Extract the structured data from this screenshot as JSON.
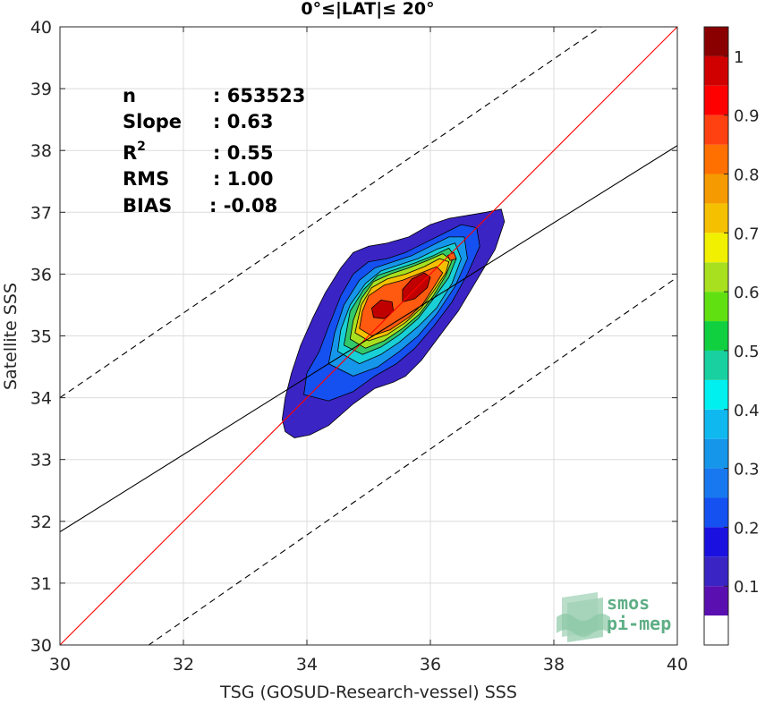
{
  "chart_data": {
    "type": "heatmap",
    "subtype": "density-contour-scatter",
    "title": "0°≤|LAT|≤ 20°",
    "xlabel": "TSG (GOSUD-Research-vessel) SSS",
    "ylabel": "Satellite SSS",
    "xlim": [
      30,
      40
    ],
    "ylim": [
      30,
      40
    ],
    "xticks": [
      30,
      32,
      34,
      36,
      38,
      40
    ],
    "yticks": [
      30,
      31,
      32,
      33,
      34,
      35,
      36,
      37,
      38,
      39,
      40
    ],
    "grid": true,
    "stats": [
      {
        "label": "n",
        "value": ": 653523"
      },
      {
        "label": "Slope",
        "value": ": 0.63"
      },
      {
        "label": "R",
        "sup": "2",
        "value": ": 0.55"
      },
      {
        "label": "RMS",
        "value": ": 1.00"
      },
      {
        "label": "BIAS",
        "value": ": -0.08"
      }
    ],
    "lines": [
      {
        "kind": "identity",
        "color": "#ff0000",
        "dash": "solid",
        "points": [
          [
            30,
            30
          ],
          [
            40,
            40
          ]
        ]
      },
      {
        "kind": "regression",
        "color": "#000000",
        "dash": "solid",
        "points": [
          [
            30,
            31.83
          ],
          [
            40,
            38.08
          ]
        ]
      },
      {
        "kind": "upper-bound",
        "color": "#000000",
        "dash": "dashed",
        "points": [
          [
            30,
            34.0
          ],
          [
            40,
            40.85
          ]
        ]
      },
      {
        "kind": "lower-bound",
        "color": "#000000",
        "dash": "dashed",
        "points": [
          [
            30,
            29.0
          ],
          [
            40,
            35.95
          ]
        ]
      }
    ],
    "density_contours": [
      {
        "level": 0.05,
        "color": "#3a24c4",
        "points": [
          [
            33.6,
            33.65
          ],
          [
            33.65,
            33.45
          ],
          [
            33.8,
            33.35
          ],
          [
            34.05,
            33.4
          ],
          [
            34.35,
            33.55
          ],
          [
            34.75,
            33.9
          ],
          [
            35.1,
            34.15
          ],
          [
            35.4,
            34.25
          ],
          [
            35.6,
            34.35
          ],
          [
            35.85,
            34.6
          ],
          [
            36.15,
            35.0
          ],
          [
            36.45,
            35.4
          ],
          [
            36.75,
            35.9
          ],
          [
            37.05,
            36.4
          ],
          [
            37.2,
            36.85
          ],
          [
            37.15,
            37.05
          ],
          [
            36.9,
            37.0
          ],
          [
            36.6,
            36.95
          ],
          [
            36.3,
            36.9
          ],
          [
            36.0,
            36.8
          ],
          [
            35.65,
            36.6
          ],
          [
            35.3,
            36.5
          ],
          [
            35.0,
            36.45
          ],
          [
            34.75,
            36.35
          ],
          [
            34.55,
            36.1
          ],
          [
            34.3,
            35.7
          ],
          [
            34.1,
            35.3
          ],
          [
            33.9,
            34.85
          ],
          [
            33.75,
            34.4
          ],
          [
            33.65,
            34.0
          ]
        ]
      },
      {
        "level": 0.2,
        "color": "#1550f0",
        "points": [
          [
            33.95,
            34.05
          ],
          [
            34.35,
            33.95
          ],
          [
            34.75,
            34.1
          ],
          [
            35.1,
            34.35
          ],
          [
            35.45,
            34.55
          ],
          [
            35.75,
            34.8
          ],
          [
            36.05,
            35.15
          ],
          [
            36.35,
            35.55
          ],
          [
            36.6,
            36.0
          ],
          [
            36.8,
            36.45
          ],
          [
            36.75,
            36.75
          ],
          [
            36.5,
            36.8
          ],
          [
            36.2,
            36.65
          ],
          [
            35.9,
            36.5
          ],
          [
            35.6,
            36.35
          ],
          [
            35.3,
            36.25
          ],
          [
            35.0,
            36.2
          ],
          [
            34.75,
            36.0
          ],
          [
            34.55,
            35.65
          ],
          [
            34.35,
            35.15
          ],
          [
            34.2,
            34.75
          ],
          [
            34.0,
            34.4
          ]
        ]
      },
      {
        "level": 0.3,
        "color": "#1696ea",
        "points": [
          [
            34.35,
            34.55
          ],
          [
            34.75,
            34.35
          ],
          [
            35.15,
            34.5
          ],
          [
            35.5,
            34.75
          ],
          [
            35.8,
            35.0
          ],
          [
            36.1,
            35.35
          ],
          [
            36.4,
            35.8
          ],
          [
            36.6,
            36.25
          ],
          [
            36.55,
            36.6
          ],
          [
            36.3,
            36.6
          ],
          [
            36.0,
            36.45
          ],
          [
            35.7,
            36.3
          ],
          [
            35.4,
            36.2
          ],
          [
            35.1,
            36.1
          ],
          [
            34.85,
            35.9
          ],
          [
            34.6,
            35.5
          ],
          [
            34.45,
            35.05
          ]
        ]
      },
      {
        "level": 0.4,
        "color": "#18d0d6",
        "points": [
          [
            34.5,
            34.75
          ],
          [
            34.85,
            34.55
          ],
          [
            35.2,
            34.7
          ],
          [
            35.5,
            34.9
          ],
          [
            35.8,
            35.15
          ],
          [
            36.1,
            35.45
          ],
          [
            36.35,
            35.85
          ],
          [
            36.5,
            36.25
          ],
          [
            36.4,
            36.5
          ],
          [
            36.1,
            36.4
          ],
          [
            35.8,
            36.25
          ],
          [
            35.5,
            36.15
          ],
          [
            35.2,
            36.05
          ],
          [
            34.95,
            35.85
          ],
          [
            34.7,
            35.5
          ],
          [
            34.55,
            35.1
          ]
        ]
      },
      {
        "level": 0.5,
        "color": "#33c86a",
        "points": [
          [
            34.6,
            34.85
          ],
          [
            34.9,
            34.7
          ],
          [
            35.2,
            34.82
          ],
          [
            35.5,
            35.02
          ],
          [
            35.8,
            35.28
          ],
          [
            36.05,
            35.6
          ],
          [
            36.3,
            35.95
          ],
          [
            36.42,
            36.25
          ],
          [
            36.3,
            36.42
          ],
          [
            36.05,
            36.3
          ],
          [
            35.75,
            36.18
          ],
          [
            35.45,
            36.08
          ],
          [
            35.15,
            35.98
          ],
          [
            34.92,
            35.75
          ],
          [
            34.7,
            35.4
          ]
        ]
      },
      {
        "level": 0.6,
        "color": "#a8e020",
        "points": [
          [
            34.7,
            34.95
          ],
          [
            34.95,
            34.8
          ],
          [
            35.25,
            34.92
          ],
          [
            35.55,
            35.12
          ],
          [
            35.82,
            35.35
          ],
          [
            36.05,
            35.65
          ],
          [
            36.25,
            35.98
          ],
          [
            36.35,
            36.22
          ],
          [
            36.2,
            36.33
          ],
          [
            35.95,
            36.22
          ],
          [
            35.65,
            36.1
          ],
          [
            35.35,
            36.0
          ],
          [
            35.08,
            35.88
          ],
          [
            34.88,
            35.6
          ],
          [
            34.75,
            35.25
          ]
        ]
      },
      {
        "level": 0.7,
        "color": "#f5c000",
        "points": [
          [
            34.78,
            35.05
          ],
          [
            35.0,
            34.92
          ],
          [
            35.3,
            35.02
          ],
          [
            35.6,
            35.22
          ],
          [
            35.85,
            35.45
          ],
          [
            36.05,
            35.72
          ],
          [
            36.25,
            36.02
          ],
          [
            36.3,
            36.2
          ],
          [
            36.15,
            36.25
          ],
          [
            35.9,
            36.12
          ],
          [
            35.6,
            36.0
          ],
          [
            35.3,
            35.92
          ],
          [
            35.05,
            35.78
          ],
          [
            34.88,
            35.5
          ]
        ]
      },
      {
        "level": 0.8,
        "color": "#ff5a10",
        "points": [
          [
            34.85,
            35.12
          ],
          [
            35.05,
            35.0
          ],
          [
            35.35,
            35.1
          ],
          [
            35.65,
            35.3
          ],
          [
            35.88,
            35.52
          ],
          [
            36.05,
            35.78
          ],
          [
            36.2,
            36.02
          ],
          [
            36.1,
            36.12
          ],
          [
            35.85,
            36.02
          ],
          [
            35.55,
            35.9
          ],
          [
            35.25,
            35.82
          ],
          [
            35.0,
            35.65
          ],
          [
            34.9,
            35.4
          ]
        ]
      },
      {
        "level": 0.9,
        "color": "#c00000",
        "points": [
          [
            35.08,
            35.3
          ],
          [
            35.25,
            35.28
          ],
          [
            35.4,
            35.4
          ],
          [
            35.38,
            35.55
          ],
          [
            35.2,
            35.58
          ],
          [
            35.05,
            35.45
          ]
        ]
      },
      {
        "level": 0.95,
        "color": "#c00000",
        "points": [
          [
            35.55,
            35.55
          ],
          [
            35.75,
            35.6
          ],
          [
            35.95,
            35.78
          ],
          [
            36.0,
            35.95
          ],
          [
            35.9,
            36.02
          ],
          [
            35.7,
            35.92
          ],
          [
            35.55,
            35.75
          ]
        ]
      },
      {
        "level": 0.8,
        "color": "#ff5a10",
        "points": [
          [
            36.32,
            36.22
          ],
          [
            36.42,
            36.25
          ],
          [
            36.38,
            36.35
          ],
          [
            36.28,
            36.3
          ]
        ]
      }
    ],
    "colorbar": {
      "ticks": [
        0.1,
        0.2,
        0.3,
        0.4,
        0.5,
        0.6,
        0.7,
        0.8,
        0.9,
        1
      ],
      "tick_labels": [
        "0.1",
        "0.2",
        "0.3",
        "0.4",
        "0.5",
        "0.6",
        "0.7",
        "0.8",
        "0.9",
        "1"
      ],
      "range": [
        0,
        1
      ],
      "bands": [
        {
          "from": 0.0,
          "to": 0.05,
          "color": "#ffffff"
        },
        {
          "from": 0.05,
          "to": 0.1,
          "color": "#5a10b0"
        },
        {
          "from": 0.1,
          "to": 0.15,
          "color": "#3a24c4"
        },
        {
          "from": 0.15,
          "to": 0.2,
          "color": "#1a10e0"
        },
        {
          "from": 0.2,
          "to": 0.25,
          "color": "#1550f0"
        },
        {
          "from": 0.25,
          "to": 0.3,
          "color": "#1878f0"
        },
        {
          "from": 0.3,
          "to": 0.35,
          "color": "#1696ea"
        },
        {
          "from": 0.35,
          "to": 0.4,
          "color": "#10b8f0"
        },
        {
          "from": 0.4,
          "to": 0.45,
          "color": "#00f0f0"
        },
        {
          "from": 0.45,
          "to": 0.5,
          "color": "#18d0a0"
        },
        {
          "from": 0.5,
          "to": 0.55,
          "color": "#10d040"
        },
        {
          "from": 0.55,
          "to": 0.6,
          "color": "#60e010"
        },
        {
          "from": 0.6,
          "to": 0.65,
          "color": "#a8e020"
        },
        {
          "from": 0.65,
          "to": 0.7,
          "color": "#f0f000"
        },
        {
          "from": 0.7,
          "to": 0.75,
          "color": "#f5c000"
        },
        {
          "from": 0.75,
          "to": 0.8,
          "color": "#f59a00"
        },
        {
          "from": 0.8,
          "to": 0.85,
          "color": "#ff7000"
        },
        {
          "from": 0.85,
          "to": 0.9,
          "color": "#ff4010"
        },
        {
          "from": 0.9,
          "to": 0.95,
          "color": "#ff0000"
        },
        {
          "from": 0.95,
          "to": 1.0,
          "color": "#d00000"
        },
        {
          "from": 1.0,
          "to": 1.05,
          "color": "#8a0000"
        }
      ]
    }
  },
  "watermark": {
    "line1": "smos",
    "line2": "pi-mep",
    "color": "#5fae86"
  }
}
